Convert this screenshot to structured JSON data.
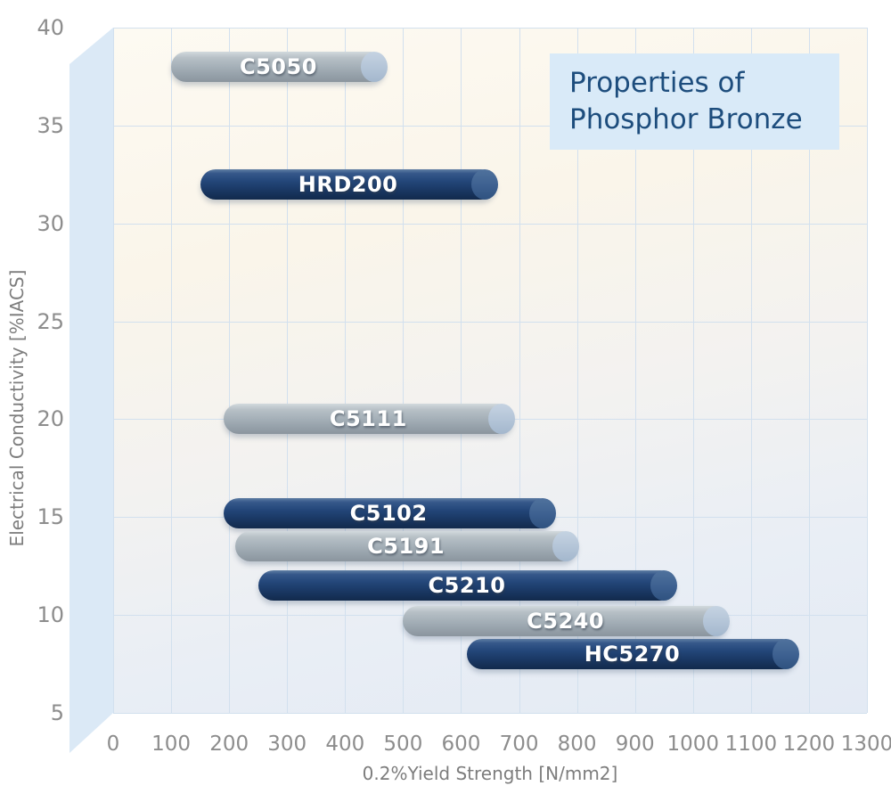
{
  "title_box": {
    "line1": "Properties of",
    "line2": "Phosphor Bronze"
  },
  "axes": {
    "x": {
      "label": "0.2%Yield Strength [N/mm2]",
      "min": 0,
      "max": 1300,
      "step": 100,
      "ticks": [
        0,
        100,
        200,
        300,
        400,
        500,
        600,
        700,
        800,
        900,
        1000,
        1100,
        1200,
        1300
      ]
    },
    "y": {
      "label": "Electrical Conductivity [%IACS]",
      "min": 5,
      "max": 40,
      "step": 5,
      "ticks": [
        5,
        10,
        15,
        20,
        25,
        30,
        35,
        40
      ]
    }
  },
  "chart_data": {
    "type": "bar",
    "orientation": "horizontal-range",
    "title": "Properties of Phosphor Bronze",
    "xlabel": "0.2%Yield Strength [N/mm2]",
    "ylabel": "Electrical Conductivity [%IACS]",
    "xlim": [
      0,
      1300
    ],
    "ylim": [
      5,
      40
    ],
    "grid": true,
    "series": [
      {
        "name": "C5050",
        "conductivity": 38,
        "yield_min": 100,
        "yield_max": 470,
        "color": "gray"
      },
      {
        "name": "HRD200",
        "conductivity": 32,
        "yield_min": 150,
        "yield_max": 660,
        "color": "navy"
      },
      {
        "name": "C5111",
        "conductivity": 20,
        "yield_min": 190,
        "yield_max": 690,
        "color": "gray"
      },
      {
        "name": "C5102",
        "conductivity": 15.2,
        "yield_min": 190,
        "yield_max": 760,
        "color": "navy"
      },
      {
        "name": "C5191",
        "conductivity": 13.5,
        "yield_min": 210,
        "yield_max": 800,
        "color": "gray"
      },
      {
        "name": "C5210",
        "conductivity": 11.5,
        "yield_min": 250,
        "yield_max": 970,
        "color": "navy"
      },
      {
        "name": "C5240",
        "conductivity": 9.7,
        "yield_min": 500,
        "yield_max": 1060,
        "color": "gray"
      },
      {
        "name": "HC5270",
        "conductivity": 8,
        "yield_min": 610,
        "yield_max": 1180,
        "color": "navy"
      }
    ],
    "colors": {
      "navy": "#1d3d68",
      "gray": "#a3aeb6",
      "grid": "#d2e0ee",
      "wall": "#dbe9f6",
      "title_box_bg": "#d9eaf8",
      "title_text": "#1d4d7d",
      "tick_text": "#8d8d8d",
      "bar_label_text": "#ffffff"
    }
  }
}
